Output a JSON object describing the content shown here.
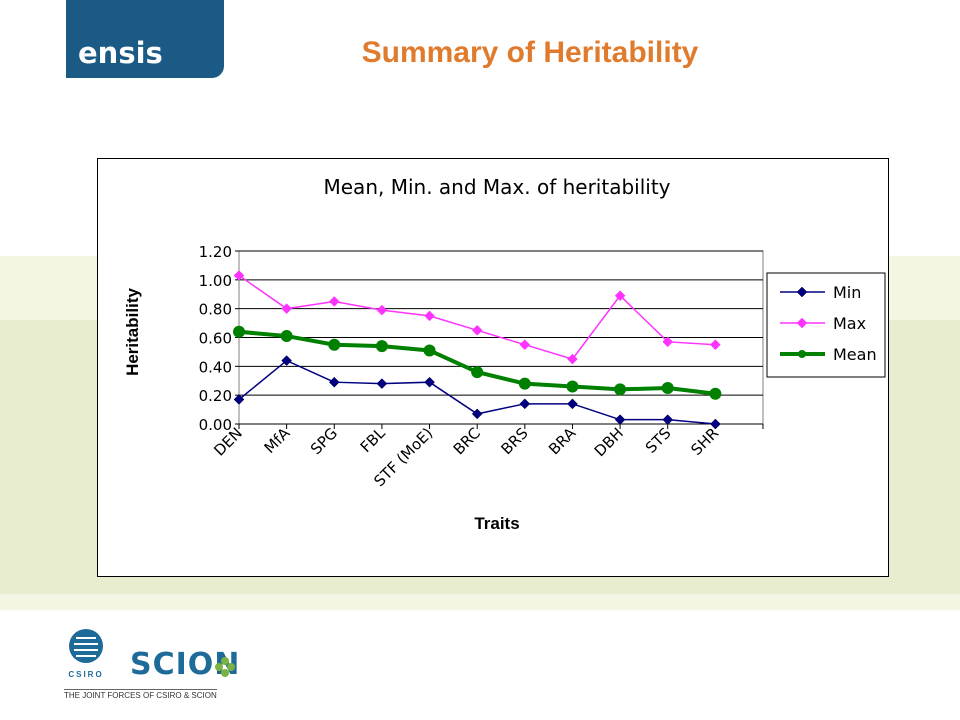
{
  "header": {
    "logo_text": "ensis",
    "title": "Summary of Heritability"
  },
  "footer": {
    "csiro_label": "CSIRO",
    "scion_label": "SCION",
    "tagline": "THE JOINT FORCES OF CSIRO & SCION"
  },
  "colors": {
    "logo_bg": "#1a5a85",
    "title": "#e07b2d",
    "min": "#000080",
    "max": "#ff33ff",
    "mean": "#008000"
  },
  "chart_data": {
    "type": "line",
    "title": "Mean, Min. and Max. of heritability",
    "xlabel": "Traits",
    "ylabel": "Heritability",
    "categories": [
      "DEN",
      "MfA",
      "SPG",
      "FBL",
      "STF (MoE)",
      "BRC",
      "BRS",
      "BRA",
      "DBH",
      "STS",
      "SHR"
    ],
    "ylim": [
      0,
      1.2
    ],
    "yticks": [
      "0.00",
      "0.20",
      "0.40",
      "0.60",
      "0.80",
      "1.00",
      "1.20"
    ],
    "grid": true,
    "legend_position": "right",
    "series": [
      {
        "name": "Min",
        "marker": "diamond",
        "values": [
          0.17,
          0.44,
          0.29,
          0.28,
          0.29,
          0.07,
          0.14,
          0.14,
          0.03,
          0.03,
          0.0
        ]
      },
      {
        "name": "Max",
        "marker": "diamond",
        "values": [
          1.03,
          0.8,
          0.85,
          0.79,
          0.75,
          0.65,
          0.55,
          0.45,
          0.89,
          0.57,
          0.55
        ]
      },
      {
        "name": "Mean",
        "marker": "circle",
        "values": [
          0.64,
          0.61,
          0.55,
          0.54,
          0.51,
          0.36,
          0.28,
          0.26,
          0.24,
          0.25,
          0.21
        ]
      }
    ]
  }
}
